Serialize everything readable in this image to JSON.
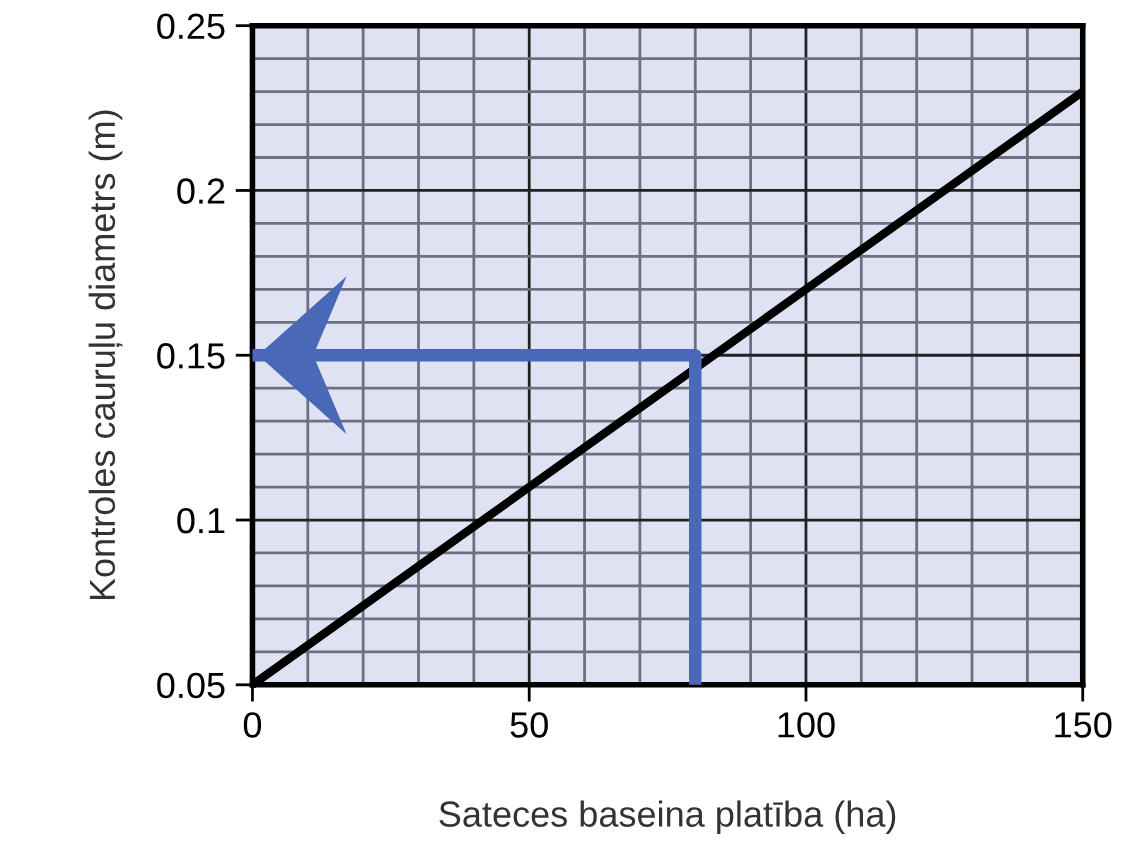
{
  "chart_data": {
    "type": "line",
    "xlabel": "Sateces baseina platība (ha)",
    "ylabel": "Kontroles cauruļu diametrs (m)",
    "series": [
      {
        "x": [
          0,
          150
        ],
        "values": [
          0.05,
          0.23
        ],
        "color": "#000000"
      },
      {
        "x": [
          80,
          80,
          0
        ],
        "values": [
          0.05,
          0.15,
          0.15
        ],
        "color": "#4a68b8"
      }
    ],
    "xlim": [
      0,
      150
    ],
    "ylim": [
      0.05,
      0.25
    ],
    "xticks": [
      0,
      {
        "value": 10,
        "label": null
      },
      {
        "value": 20,
        "label": null
      },
      {
        "value": 30,
        "label": null
      },
      {
        "value": 40,
        "label": null
      },
      50,
      {
        "value": 60,
        "label": null
      },
      {
        "value": 70,
        "label": null
      },
      {
        "value": 80,
        "label": null
      },
      {
        "value": 90,
        "label": null
      },
      100,
      {
        "value": 110,
        "label": null
      },
      {
        "value": 120,
        "label": null
      },
      {
        "value": 130,
        "label": null
      },
      {
        "value": 140,
        "label": null
      },
      150
    ],
    "yticks": [
      0.05,
      {
        "value": 0.06,
        "label": null
      },
      {
        "value": 0.07,
        "label": null
      },
      {
        "value": 0.08,
        "label": null
      },
      {
        "value": 0.09,
        "label": null
      },
      0.1,
      {
        "value": 0.11,
        "label": null
      },
      {
        "value": 0.12,
        "label": null
      },
      {
        "value": 0.13,
        "label": null
      },
      {
        "value": 0.14,
        "label": null
      },
      0.15,
      {
        "value": 0.16,
        "label": null
      },
      {
        "value": 0.17,
        "label": null
      },
      {
        "value": 0.18,
        "label": null
      },
      {
        "value": 0.19,
        "label": null
      },
      0.2,
      {
        "value": 0.21,
        "label": null
      },
      {
        "value": 0.22,
        "label": null
      },
      {
        "value": 0.23,
        "label": null
      },
      {
        "value": 0.24,
        "label": null
      },
      0.25
    ],
    "grid": true,
    "marker": "none",
    "line_style": "solid"
  }
}
